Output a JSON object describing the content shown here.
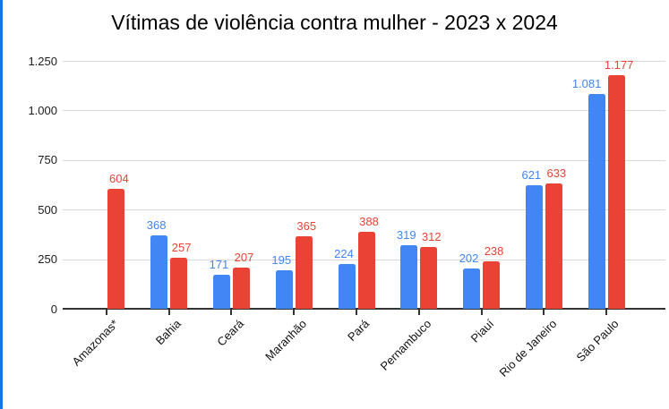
{
  "window": {
    "background_color": "#ffffff",
    "left_accent_color": "#1a73e8"
  },
  "chart_data": {
    "type": "bar",
    "title": "Vítimas de violência contra mulher - 2023 x 2024",
    "categories": [
      "Amazonas*",
      "Bahia",
      "Ceará",
      "Maranhão",
      "Pará",
      "Pernambuco",
      "Piauí",
      "Rio de Janeiro",
      "São Paulo"
    ],
    "series": [
      {
        "name": "2023",
        "color": "#4285f4",
        "values": [
          null,
          368,
          171,
          195,
          224,
          319,
          202,
          621,
          1081
        ],
        "value_labels": [
          "",
          "368",
          "171",
          "195",
          "224",
          "319",
          "202",
          "621",
          "1.081"
        ]
      },
      {
        "name": "2024",
        "color": "#ea4335",
        "values": [
          604,
          257,
          207,
          365,
          388,
          312,
          238,
          633,
          1177
        ],
        "value_labels": [
          "604",
          "257",
          "207",
          "365",
          "388",
          "312",
          "238",
          "633",
          "1.177"
        ]
      }
    ],
    "xlabel": "",
    "ylabel": "",
    "ylim": [
      0,
      1250
    ],
    "yticks": [
      0,
      250,
      500,
      750,
      1000,
      1250
    ],
    "ytick_labels": [
      "0",
      "250",
      "500",
      "750",
      "1.000",
      "1.250"
    ],
    "grid": true,
    "legend_position": "none",
    "data_labels": true,
    "x_tick_label_rotation_deg": -45,
    "gridline_color": "#d9d9d9",
    "axis_color": "#333333"
  }
}
